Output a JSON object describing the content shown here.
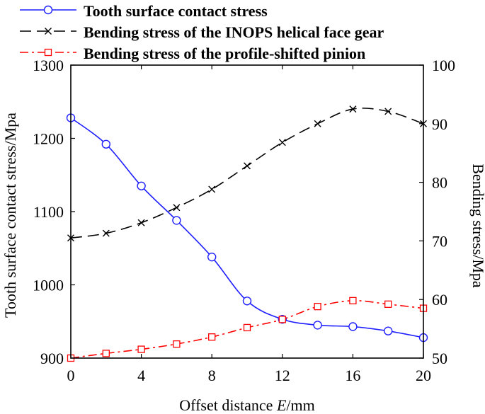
{
  "chart_data": {
    "type": "line",
    "x": [
      0,
      2,
      4,
      6,
      8,
      10,
      12,
      14,
      16,
      18,
      20
    ],
    "xlabel_prefix": "Offset distance ",
    "xlabel_var": "E",
    "xlabel_suffix": "/mm",
    "ylabel_left": "Tooth surface contact stress/Mpa",
    "ylabel_right": "Bending stress/Mpa",
    "xlim": [
      0,
      20
    ],
    "ylim_left": [
      900,
      1300
    ],
    "ylim_right": [
      50,
      100
    ],
    "xticks": [
      0,
      4,
      8,
      12,
      16,
      20
    ],
    "yticks_left": [
      900,
      1000,
      1100,
      1200,
      1300
    ],
    "yticks_right": [
      50,
      60,
      70,
      80,
      90,
      100
    ],
    "legend_position": "top",
    "series": [
      {
        "name": "Tooth surface contact stress",
        "axis": "left",
        "color": "#1f1fff",
        "line_style": "solid",
        "marker": "circle",
        "values": [
          1228,
          1192,
          1135,
          1088,
          1038,
          978,
          953,
          945,
          943,
          937,
          928
        ]
      },
      {
        "name": "Bending stress of the  INOPS helical face gear",
        "axis": "right",
        "color": "#000000",
        "line_style": "dashed",
        "marker": "x",
        "values": [
          70.5,
          71.3,
          73.1,
          75.7,
          78.8,
          82.8,
          86.8,
          90.0,
          92.5,
          92.1,
          90.0
        ]
      },
      {
        "name": "Bending stress of the profile-shifted pinion",
        "axis": "right",
        "color": "#ff0000",
        "line_style": "dashdot",
        "marker": "square",
        "values": [
          50.0,
          50.8,
          51.5,
          52.4,
          53.6,
          55.2,
          56.6,
          58.8,
          59.8,
          59.2,
          58.5
        ]
      }
    ]
  }
}
